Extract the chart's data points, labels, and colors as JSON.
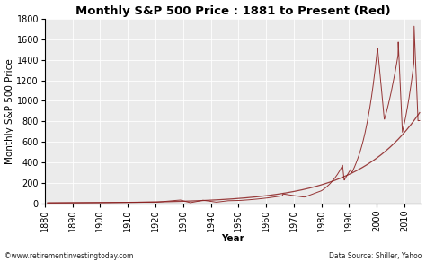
{
  "title": "Monthly S&P 500 Price : 1881 to Present (Red)",
  "xlabel": "Year",
  "ylabel": "Monthly S&P 500 Price",
  "xlim": [
    1880,
    2016
  ],
  "ylim": [
    0,
    1800
  ],
  "yticks": [
    0,
    200,
    400,
    600,
    800,
    1000,
    1200,
    1400,
    1600,
    1800
  ],
  "xticks": [
    1880,
    1890,
    1900,
    1910,
    1920,
    1930,
    1940,
    1950,
    1960,
    1970,
    1980,
    1990,
    2000,
    2010
  ],
  "line_color": "#8B2020",
  "bg_color": "#ebebeb",
  "grid_color": "#ffffff",
  "footer_left": "©www.retirementinvestingtoday.com",
  "footer_right": "Data Source: Shiller, Yahoo",
  "title_fontsize": 9.5,
  "label_fontsize": 7.5,
  "tick_fontsize": 7
}
